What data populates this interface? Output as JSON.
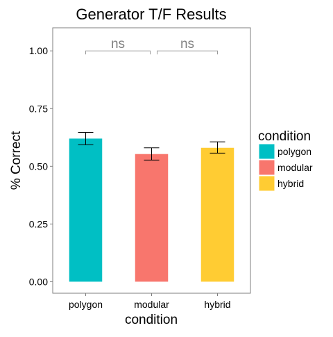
{
  "chart_data": {
    "type": "bar",
    "title": "Generator T/F Results",
    "xlabel": "condition",
    "ylabel": "% Correct",
    "categories": [
      "polygon",
      "modular",
      "hybrid"
    ],
    "values": [
      0.62,
      0.553,
      0.58
    ],
    "error_low": [
      0.593,
      0.527,
      0.557
    ],
    "error_high": [
      0.647,
      0.58,
      0.606
    ],
    "colors": [
      "#00BFC4",
      "#F8766D",
      "#FFCC33"
    ],
    "ylim": [
      -0.05,
      1.1
    ],
    "yticks": [
      0.0,
      0.25,
      0.5,
      0.75,
      1.0
    ],
    "ytick_labels": [
      "0.00",
      "0.25",
      "0.50",
      "0.75",
      "1.00"
    ],
    "grid": false,
    "legend": {
      "title": "condition",
      "position": "right",
      "entries": [
        "polygon",
        "modular",
        "hybrid"
      ]
    },
    "annotations": [
      {
        "label": "ns",
        "from": "polygon",
        "to": "modular",
        "y": 1.0
      },
      {
        "label": "ns",
        "from": "modular",
        "to": "hybrid",
        "y": 1.0
      }
    ]
  }
}
